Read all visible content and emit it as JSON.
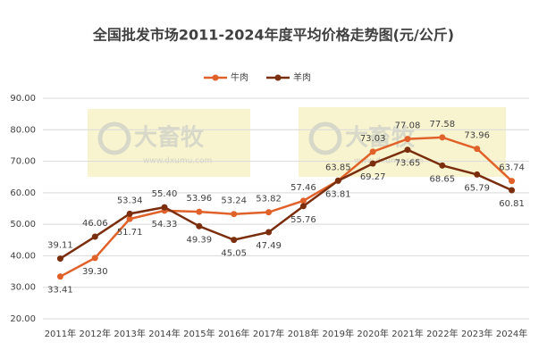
{
  "chart_data": {
    "type": "line",
    "title": "全国批发市场2011-2024年度平均价格走势图(元/公斤)",
    "watermark": [
      "大畜牧",
      "www.dxumu.com"
    ],
    "categories": [
      "2011年",
      "2012年",
      "2013年",
      "2014年",
      "2015年",
      "2016年",
      "2017年",
      "2018年",
      "2019年",
      "2020年",
      "2021年",
      "2022年",
      "2023年",
      "2024年"
    ],
    "series": [
      {
        "name": "牛肉",
        "color": "#e0622a",
        "values": [
          33.41,
          39.3,
          51.71,
          54.33,
          53.96,
          53.24,
          53.82,
          57.46,
          63.85,
          73.03,
          77.08,
          77.58,
          73.96,
          63.74
        ],
        "value_labels": [
          "33.41",
          "39.30",
          "51.71",
          "54.33",
          "53.96",
          "53.24",
          "53.82",
          "57.46",
          "63.85",
          "73.03",
          "77.08",
          "77.58",
          "73.96",
          "63.74"
        ]
      },
      {
        "name": "羊肉",
        "color": "#7a2e0e",
        "values": [
          39.11,
          46.06,
          53.34,
          55.4,
          49.39,
          45.05,
          47.49,
          55.76,
          63.81,
          69.27,
          73.65,
          68.65,
          65.79,
          60.81
        ],
        "value_labels": [
          "39.11",
          "46.06",
          "53.34",
          "55.40",
          "49.39",
          "45.05",
          "47.49",
          "55.76",
          "63.81",
          "69.27",
          "73.65",
          "68.65",
          "65.79",
          "60.81"
        ]
      }
    ],
    "ylim": [
      20,
      90
    ],
    "yticks": [
      {
        "value": 20,
        "label": "20.00"
      },
      {
        "value": 30,
        "label": "30.00"
      },
      {
        "value": 40,
        "label": "40.00"
      },
      {
        "value": 50,
        "label": "50.00"
      },
      {
        "value": 60,
        "label": "60.00"
      },
      {
        "value": 70,
        "label": "70.00"
      },
      {
        "value": 80,
        "label": "80.00"
      },
      {
        "value": 90,
        "label": "90.00"
      }
    ],
    "grid": true,
    "legend": "top"
  }
}
